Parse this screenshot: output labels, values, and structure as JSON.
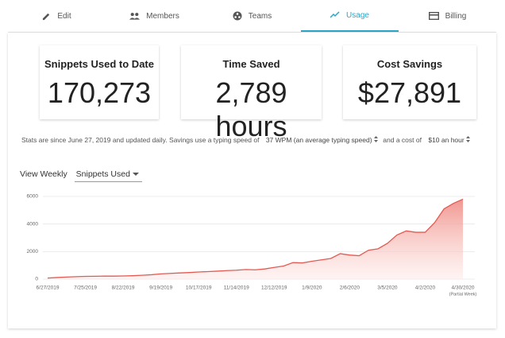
{
  "tabs": [
    "Edit",
    "Members",
    "Teams",
    "Usage",
    "Billing"
  ],
  "active_tab": 3,
  "stats": [
    {
      "label": "Snippets Used to Date",
      "value": "170,273"
    },
    {
      "label": "Time Saved",
      "value": "2,789 hours"
    },
    {
      "label": "Cost Savings",
      "value": "$27,891"
    }
  ],
  "note": {
    "text1": "Stats are since June 27, 2019 and updated daily. Savings use a typing speed of",
    "speed": "37 WPM (an average typing speed)",
    "text2": "and a cost of",
    "cost": "$10 an hour"
  },
  "view": {
    "label": "View Weekly",
    "metric": "Snippets Used"
  },
  "chart_data": {
    "type": "area",
    "categories": [
      "6/27/2019",
      null,
      null,
      null,
      "7/25/2019",
      null,
      null,
      null,
      "8/22/2019",
      null,
      null,
      null,
      "9/19/2019",
      null,
      null,
      null,
      "10/17/2019",
      null,
      null,
      null,
      "11/14/2019",
      null,
      null,
      null,
      "12/12/2019",
      null,
      null,
      null,
      "1/9/2020",
      null,
      null,
      null,
      "2/6/2020",
      null,
      null,
      null,
      "3/5/2020",
      null,
      null,
      null,
      "4/2/2020",
      null,
      null,
      null,
      "4/30/2020"
    ],
    "values": [
      80,
      120,
      150,
      180,
      200,
      210,
      220,
      220,
      230,
      250,
      280,
      320,
      380,
      420,
      450,
      480,
      520,
      550,
      580,
      620,
      650,
      700,
      680,
      740,
      850,
      950,
      1200,
      1180,
      1300,
      1400,
      1500,
      1850,
      1750,
      1700,
      2100,
      2200,
      2600,
      3200,
      3500,
      3400,
      3400,
      4100,
      5100,
      5500,
      5800
    ],
    "last_note": "(Partial Week)",
    "color": "#e35a52",
    "ylim": [
      0,
      6000
    ],
    "yticks": [
      0,
      2000,
      4000,
      6000
    ],
    "grid": true
  }
}
